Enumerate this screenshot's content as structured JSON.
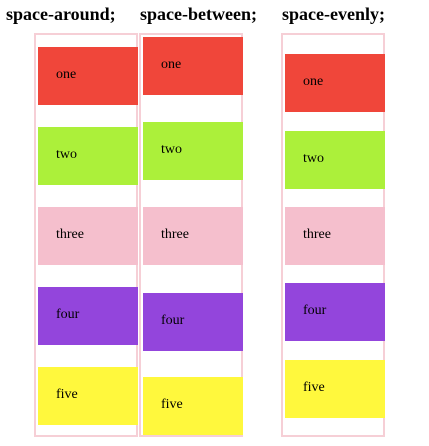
{
  "columns": [
    {
      "title": "space-around;",
      "items": [
        "one",
        "two",
        "three",
        "four",
        "five"
      ]
    },
    {
      "title": "space-between;",
      "items": [
        "one",
        "two",
        "three",
        "four",
        "five"
      ]
    },
    {
      "title": "space-evenly;",
      "items": [
        "one",
        "two",
        "three",
        "four",
        "five"
      ]
    }
  ],
  "colors": {
    "one": "#f0463a",
    "two": "#acf03a",
    "three": "#f5bfcd",
    "four": "#9345dc",
    "five": "#fff83d",
    "container_border": "#f6cfd6"
  }
}
